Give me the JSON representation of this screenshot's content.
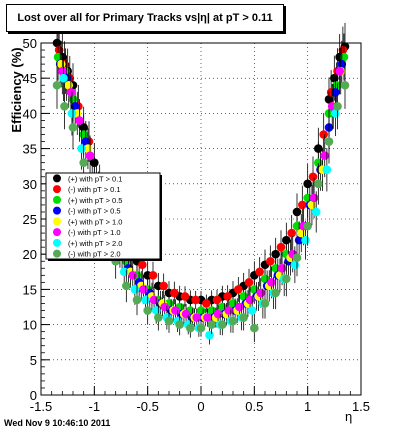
{
  "title": "Lost over all for Primary Tracks vs|η| at pT > 0.11",
  "footer": "Wed Nov  9 10:46:10 2011",
  "chart_data": {
    "type": "scatter",
    "title": "Lost over all for Primary Tracks vs|η| at pT > 0.11",
    "xlabel": "η",
    "ylabel": "Efficiency (%)",
    "xlim": [
      -1.5,
      1.5
    ],
    "ylim": [
      0,
      50
    ],
    "grid": true,
    "legend_position": "left-middle",
    "x_ticks": [
      "-1.5",
      "-1",
      "-0.5",
      "0",
      "0.5",
      "1",
      "1.5"
    ],
    "y_ticks": [
      "0",
      "5",
      "10",
      "15",
      "20",
      "25",
      "30",
      "35",
      "40",
      "45",
      "50"
    ],
    "series": [
      {
        "name": "(+) with pT > 0.1",
        "color": "#000000",
        "x": [
          -1.35,
          -1.3,
          -1.25,
          -1.2,
          -1.1,
          -1.0,
          -0.9,
          -0.8,
          -0.7,
          -0.6,
          -0.5,
          -0.4,
          -0.3,
          -0.2,
          -0.1,
          0.0,
          0.1,
          0.2,
          0.3,
          0.4,
          0.5,
          0.6,
          0.7,
          0.8,
          0.9,
          1.0,
          1.1,
          1.2,
          1.25,
          1.3,
          1.35
        ],
        "y": [
          50,
          48,
          46,
          44,
          38,
          33,
          28,
          24,
          21,
          19,
          17,
          15.5,
          14.5,
          14,
          13.5,
          13.5,
          13.5,
          14,
          14.5,
          15.5,
          17,
          18.5,
          20,
          22,
          26,
          30,
          35,
          42,
          45,
          48,
          49.5
        ]
      },
      {
        "name": "(-) with pT > 0.1",
        "color": "#ff0000",
        "x": [
          -1.33,
          -1.28,
          -1.23,
          -1.15,
          -1.05,
          -0.95,
          -0.85,
          -0.75,
          -0.65,
          -0.55,
          -0.45,
          -0.35,
          -0.25,
          -0.15,
          -0.05,
          0.05,
          0.15,
          0.25,
          0.35,
          0.45,
          0.55,
          0.65,
          0.75,
          0.85,
          0.95,
          1.05,
          1.15,
          1.22,
          1.28,
          1.33
        ],
        "y": [
          49,
          47,
          45,
          41,
          36,
          30,
          26,
          22.5,
          20,
          18.5,
          17,
          15.5,
          14.5,
          14,
          13.5,
          13,
          13.5,
          14,
          15,
          16,
          17.5,
          19,
          21,
          23,
          27,
          31,
          37,
          43,
          46,
          49
        ]
      },
      {
        "name": "(+) with pT > 0.5",
        "color": "#00dd00",
        "x": [
          -1.34,
          -1.27,
          -1.2,
          -1.1,
          -1.0,
          -0.9,
          -0.8,
          -0.7,
          -0.6,
          -0.5,
          -0.4,
          -0.3,
          -0.2,
          -0.1,
          0.0,
          0.1,
          0.2,
          0.3,
          0.4,
          0.5,
          0.6,
          0.7,
          0.8,
          0.9,
          1.0,
          1.1,
          1.2,
          1.27,
          1.34
        ],
        "y": [
          48,
          46,
          42,
          37,
          31,
          26,
          22,
          19,
          17,
          15,
          13.5,
          13,
          12.5,
          12,
          12,
          12,
          12.5,
          13,
          14,
          15,
          16.5,
          18,
          20,
          24,
          28,
          33,
          40,
          44,
          48
        ]
      },
      {
        "name": "(-) with pT > 0.5",
        "color": "#0000ff",
        "x": [
          -1.32,
          -1.26,
          -1.18,
          -1.08,
          -0.98,
          -0.88,
          -0.78,
          -0.68,
          -0.58,
          -0.48,
          -0.38,
          -0.28,
          -0.18,
          -0.08,
          0.02,
          0.12,
          0.22,
          0.32,
          0.42,
          0.52,
          0.62,
          0.72,
          0.82,
          0.92,
          1.02,
          1.12,
          1.2,
          1.26,
          1.32
        ],
        "y": [
          47,
          45,
          41,
          36,
          30,
          25,
          21,
          18,
          16,
          14.5,
          13,
          12,
          11.5,
          11,
          11,
          11,
          11.5,
          12,
          13,
          14,
          15.5,
          17,
          19,
          22,
          27,
          32,
          38,
          43,
          47
        ]
      },
      {
        "name": "(+) with pT > 1.0",
        "color": "#ffff00",
        "x": [
          -1.31,
          -1.24,
          -1.16,
          -1.06,
          -0.96,
          -0.86,
          -0.76,
          -0.66,
          -0.56,
          -0.46,
          -0.36,
          -0.26,
          -0.16,
          -0.06,
          0.04,
          0.14,
          0.24,
          0.34,
          0.44,
          0.54,
          0.64,
          0.74,
          0.84,
          0.94,
          1.04,
          1.14,
          1.24,
          1.31
        ],
        "y": [
          47,
          44,
          40,
          35,
          29,
          24,
          20.5,
          17.5,
          15.5,
          14,
          13,
          12,
          11.5,
          11,
          11,
          11,
          11.5,
          12,
          13,
          14,
          15.5,
          17,
          19.5,
          23,
          27,
          32,
          41,
          46
        ]
      },
      {
        "name": "(-) with pT > 1.0",
        "color": "#ff00ff",
        "x": [
          -1.3,
          -1.22,
          -1.14,
          -1.04,
          -0.94,
          -0.84,
          -0.74,
          -0.64,
          -0.54,
          -0.44,
          -0.34,
          -0.24,
          -0.14,
          -0.04,
          0.06,
          0.16,
          0.26,
          0.36,
          0.46,
          0.56,
          0.66,
          0.76,
          0.86,
          0.96,
          1.06,
          1.16,
          1.23,
          1.3
        ],
        "y": [
          46,
          43,
          39,
          34,
          28,
          23.5,
          20,
          17,
          15,
          13.5,
          12.5,
          12,
          11.5,
          11,
          11,
          11.5,
          12,
          12.5,
          13.5,
          14.5,
          16,
          18,
          20,
          24,
          28,
          34,
          41,
          46
        ]
      },
      {
        "name": "(+) with pT > 2.0",
        "color": "#00ffff",
        "x": [
          -1.29,
          -1.21,
          -1.12,
          -1.02,
          -0.92,
          -0.82,
          -0.72,
          -0.62,
          -0.52,
          -0.42,
          -0.32,
          -0.22,
          -0.12,
          -0.02,
          0.08,
          0.18,
          0.28,
          0.38,
          0.48,
          0.58,
          0.68,
          0.78,
          0.88,
          0.98,
          1.08,
          1.18,
          1.26
        ],
        "y": [
          45,
          40,
          35,
          30,
          25,
          21,
          17.5,
          15,
          13.5,
          12,
          11,
          10.5,
          10,
          9.5,
          8.5,
          10,
          10.5,
          11,
          12,
          13,
          14.5,
          16.5,
          18.5,
          22,
          26,
          32,
          40
        ]
      },
      {
        "name": "(-) with pT > 2.0",
        "color": "#55aa55",
        "x": [
          -1.35,
          -1.28,
          -1.2,
          -1.1,
          -1.0,
          -0.9,
          -0.8,
          -0.7,
          -0.6,
          -0.5,
          -0.4,
          -0.3,
          -0.2,
          -0.1,
          0.0,
          0.1,
          0.2,
          0.3,
          0.4,
          0.5,
          0.6,
          0.7,
          0.8,
          0.9,
          1.0,
          1.1,
          1.2,
          1.28,
          1.35
        ],
        "y": [
          44,
          41,
          38,
          33,
          28,
          23,
          19,
          15.5,
          13.5,
          12,
          11,
          10.5,
          10,
          9.5,
          9.5,
          10,
          10,
          10.5,
          11,
          9.5,
          13,
          14.5,
          16.5,
          19.5,
          24,
          30,
          36,
          41,
          44
        ]
      }
    ]
  }
}
